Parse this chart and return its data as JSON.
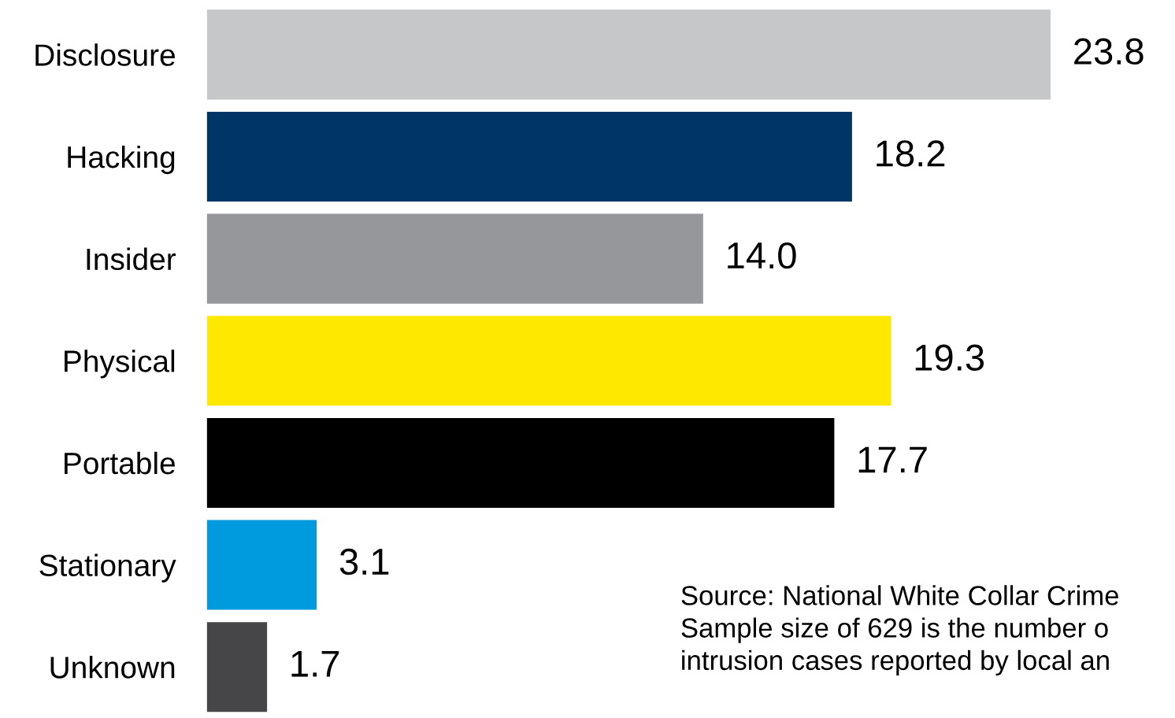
{
  "chart_data": {
    "type": "bar",
    "orientation": "horizontal",
    "categories": [
      "Disclosure",
      "Hacking",
      "Insider",
      "Physical",
      "Portable",
      "Stationary",
      "Unknown"
    ],
    "values": [
      23.8,
      18.2,
      14.0,
      19.3,
      17.7,
      3.1,
      1.7
    ],
    "colors": [
      "#c6c7c9",
      "#003567",
      "#96979a",
      "#ffe800",
      "#000000",
      "#009ade",
      "#464648"
    ],
    "value_labels": [
      "23.8",
      "18.2",
      "14.0",
      "19.3",
      "17.7",
      "3.1",
      "1.7"
    ],
    "annotations": [
      "Source: National White Collar Crime\nSample size of 629 is the number o\nintrusion cases reported by local an"
    ]
  }
}
